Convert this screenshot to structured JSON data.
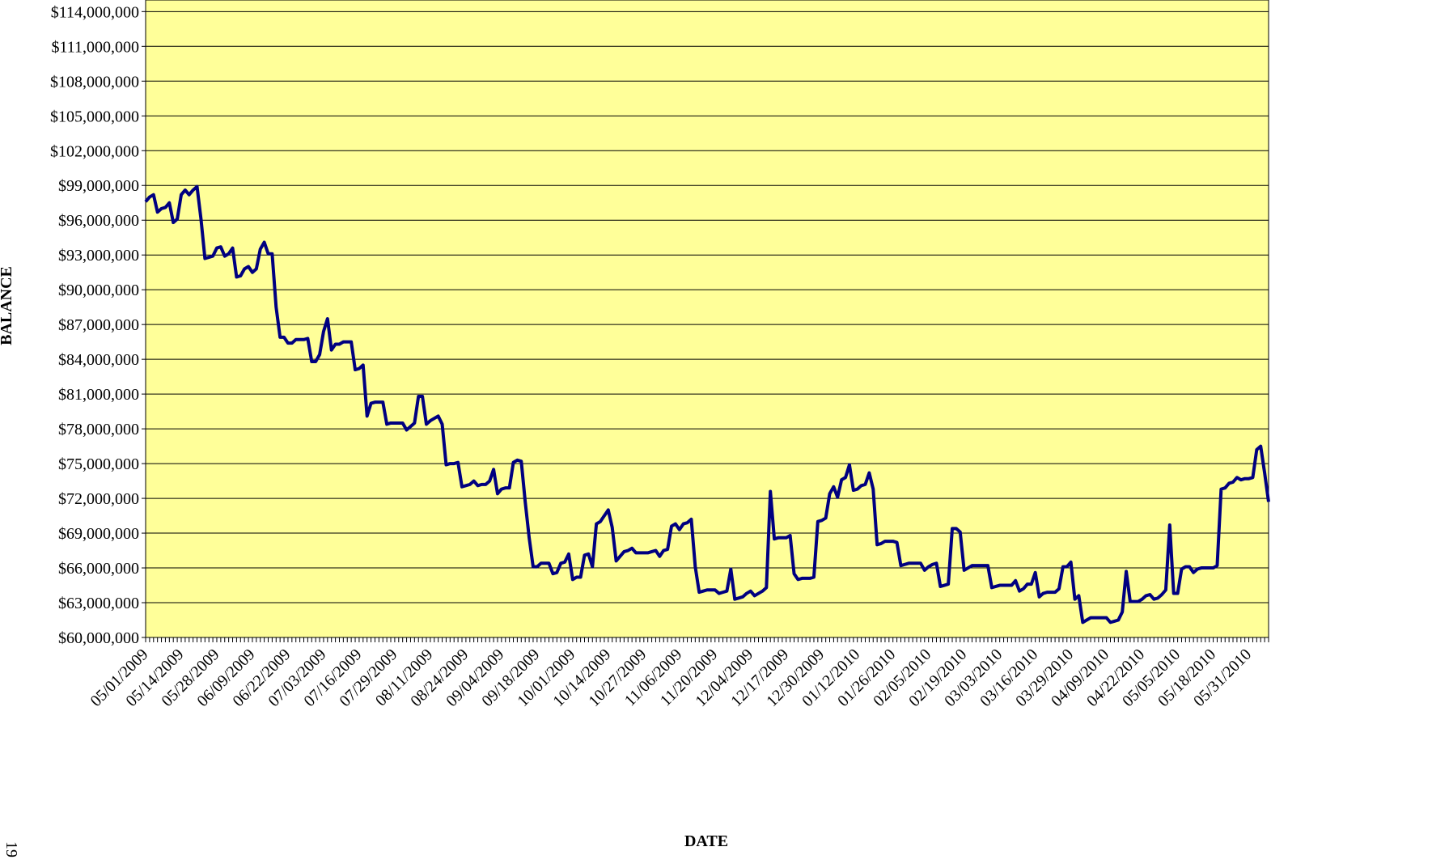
{
  "chart_data": {
    "type": "line",
    "y_label": "BALANCE",
    "x_label": "DATE",
    "page_number": "19",
    "categories": [
      "05/01/2009",
      null,
      null,
      null,
      null,
      null,
      null,
      null,
      null,
      "05/14/2009",
      null,
      null,
      null,
      null,
      null,
      null,
      null,
      null,
      "05/28/2009",
      null,
      null,
      null,
      null,
      null,
      null,
      null,
      null,
      "06/09/2009",
      null,
      null,
      null,
      null,
      null,
      null,
      null,
      null,
      "06/22/2009",
      null,
      null,
      null,
      null,
      null,
      null,
      null,
      null,
      "07/03/2009",
      null,
      null,
      null,
      null,
      null,
      null,
      null,
      null,
      "07/16/2009",
      null,
      null,
      null,
      null,
      null,
      null,
      null,
      null,
      "07/29/2009",
      null,
      null,
      null,
      null,
      null,
      null,
      null,
      null,
      "08/11/2009",
      null,
      null,
      null,
      null,
      null,
      null,
      null,
      null,
      "08/24/2009",
      null,
      null,
      null,
      null,
      null,
      null,
      null,
      null,
      "09/04/2009",
      null,
      null,
      null,
      null,
      null,
      null,
      null,
      null,
      "09/18/2009",
      null,
      null,
      null,
      null,
      null,
      null,
      null,
      null,
      "10/01/2009",
      null,
      null,
      null,
      null,
      null,
      null,
      null,
      null,
      "10/14/2009",
      null,
      null,
      null,
      null,
      null,
      null,
      null,
      null,
      "10/27/2009",
      null,
      null,
      null,
      null,
      null,
      null,
      null,
      null,
      "11/06/2009",
      null,
      null,
      null,
      null,
      null,
      null,
      null,
      null,
      "11/20/2009",
      null,
      null,
      null,
      null,
      null,
      null,
      null,
      null,
      "12/04/2009",
      null,
      null,
      null,
      null,
      null,
      null,
      null,
      null,
      "12/17/2009",
      null,
      null,
      null,
      null,
      null,
      null,
      null,
      null,
      "12/30/2009",
      null,
      null,
      null,
      null,
      null,
      null,
      null,
      null,
      "01/12/2010",
      null,
      null,
      null,
      null,
      null,
      null,
      null,
      null,
      "01/26/2010",
      null,
      null,
      null,
      null,
      null,
      null,
      null,
      null,
      "02/05/2010",
      null,
      null,
      null,
      null,
      null,
      null,
      null,
      null,
      "02/19/2010",
      null,
      null,
      null,
      null,
      null,
      null,
      null,
      null,
      "03/03/2010",
      null,
      null,
      null,
      null,
      null,
      null,
      null,
      null,
      "03/16/2010",
      null,
      null,
      null,
      null,
      null,
      null,
      null,
      null,
      "03/29/2010",
      null,
      null,
      null,
      null,
      null,
      null,
      null,
      null,
      "04/09/2010",
      null,
      null,
      null,
      null,
      null,
      null,
      null,
      null,
      "04/22/2010",
      null,
      null,
      null,
      null,
      null,
      null,
      null,
      null,
      "05/05/2010",
      null,
      null,
      null,
      null,
      null,
      null,
      null,
      null,
      "05/18/2010",
      null,
      null,
      null,
      null,
      null,
      null,
      null,
      null,
      "05/31/2010",
      null,
      null,
      null,
      null,
      null
    ],
    "series": [
      {
        "color": "#000080",
        "values": [
          97600000,
          98000000,
          98200000,
          96700000,
          97000000,
          97100000,
          97500000,
          95800000,
          96100000,
          98200000,
          98600000,
          98200000,
          98600000,
          98900000,
          96100000,
          92700000,
          92800000,
          92900000,
          93600000,
          93700000,
          92900000,
          93100000,
          93600000,
          91100000,
          91200000,
          91800000,
          92000000,
          91500000,
          91800000,
          93500000,
          94100000,
          93100000,
          93100000,
          88500000,
          85900000,
          85900000,
          85400000,
          85400000,
          85700000,
          85700000,
          85700000,
          85800000,
          83800000,
          83800000,
          84400000,
          86400000,
          87500000,
          84800000,
          85300000,
          85300000,
          85500000,
          85500000,
          85500000,
          83100000,
          83200000,
          83500000,
          79100000,
          80200000,
          80300000,
          80300000,
          80300000,
          78400000,
          78500000,
          78500000,
          78500000,
          78500000,
          77900000,
          78200000,
          78500000,
          80800000,
          80800000,
          78400000,
          78700000,
          78900000,
          79100000,
          78400000,
          74900000,
          75000000,
          75000000,
          75100000,
          73000000,
          73100000,
          73200000,
          73500000,
          73100000,
          73200000,
          73200000,
          73500000,
          74500000,
          72400000,
          72800000,
          72900000,
          72900000,
          75100000,
          75300000,
          75200000,
          71700000,
          68600000,
          66100000,
          66100000,
          66400000,
          66400000,
          66400000,
          65500000,
          65600000,
          66400000,
          66500000,
          67200000,
          65000000,
          65200000,
          65200000,
          67100000,
          67200000,
          66100000,
          69800000,
          70000000,
          70500000,
          71000000,
          69500000,
          66600000,
          67000000,
          67400000,
          67500000,
          67700000,
          67300000,
          67300000,
          67300000,
          67300000,
          67400000,
          67500000,
          67000000,
          67500000,
          67600000,
          69600000,
          69800000,
          69300000,
          69800000,
          69900000,
          70200000,
          66100000,
          63900000,
          64000000,
          64100000,
          64100000,
          64100000,
          63800000,
          63900000,
          64000000,
          65900000,
          63300000,
          63400000,
          63500000,
          63800000,
          64000000,
          63600000,
          63800000,
          64000000,
          64300000,
          72600000,
          68500000,
          68600000,
          68600000,
          68600000,
          68800000,
          65500000,
          65000000,
          65100000,
          65100000,
          65100000,
          65200000,
          70000000,
          70100000,
          70300000,
          72400000,
          73000000,
          72100000,
          73600000,
          73800000,
          74900000,
          72700000,
          72800000,
          73100000,
          73200000,
          74200000,
          72800000,
          68000000,
          68100000,
          68300000,
          68300000,
          68300000,
          68200000,
          66200000,
          66300000,
          66400000,
          66400000,
          66400000,
          66400000,
          65800000,
          66100000,
          66300000,
          66400000,
          64400000,
          64500000,
          64600000,
          69400000,
          69400000,
          69100000,
          65800000,
          66000000,
          66200000,
          66200000,
          66200000,
          66200000,
          66200000,
          64300000,
          64400000,
          64500000,
          64500000,
          64500000,
          64500000,
          64900000,
          64000000,
          64200000,
          64600000,
          64600000,
          65600000,
          63500000,
          63800000,
          63900000,
          63900000,
          63900000,
          64200000,
          66100000,
          66100000,
          66500000,
          63300000,
          63600000,
          61300000,
          61500000,
          61700000,
          61700000,
          61700000,
          61700000,
          61700000,
          61300000,
          61400000,
          61500000,
          62200000,
          65700000,
          63100000,
          63100000,
          63100000,
          63300000,
          63600000,
          63700000,
          63300000,
          63400000,
          63700000,
          64100000,
          69700000,
          63800000,
          63800000,
          65900000,
          66100000,
          66100000,
          65600000,
          65900000,
          66000000,
          66000000,
          66000000,
          66000000,
          66200000,
          72800000,
          72900000,
          73300000,
          73400000,
          73800000,
          73600000,
          73700000,
          73700000,
          73800000,
          76200000,
          76500000,
          74200000,
          71700000
        ]
      }
    ],
    "ylim": [
      60000000,
      115000000
    ],
    "yticks": [
      {
        "value": 60000000,
        "label": "$60,000,000"
      },
      {
        "value": 63000000,
        "label": "$63,000,000"
      },
      {
        "value": 66000000,
        "label": "$66,000,000"
      },
      {
        "value": 69000000,
        "label": "$69,000,000"
      },
      {
        "value": 72000000,
        "label": "$72,000,000"
      },
      {
        "value": 75000000,
        "label": "$75,000,000"
      },
      {
        "value": 78000000,
        "label": "$78,000,000"
      },
      {
        "value": 81000000,
        "label": "$81,000,000"
      },
      {
        "value": 84000000,
        "label": "$84,000,000"
      },
      {
        "value": 87000000,
        "label": "$87,000,000"
      },
      {
        "value": 90000000,
        "label": "$90,000,000"
      },
      {
        "value": 93000000,
        "label": "$93,000,000"
      },
      {
        "value": 96000000,
        "label": "$96,000,000"
      },
      {
        "value": 99000000,
        "label": "$99,000,000"
      },
      {
        "value": 102000000,
        "label": "$102,000,000"
      },
      {
        "value": 105000000,
        "label": "$105,000,000"
      },
      {
        "value": 108000000,
        "label": "$108,000,000"
      },
      {
        "value": 111000000,
        "label": "$111,000,000"
      },
      {
        "value": 114000000,
        "label": "$114,000,000"
      }
    ],
    "grid": true,
    "background": "#ffff99"
  }
}
